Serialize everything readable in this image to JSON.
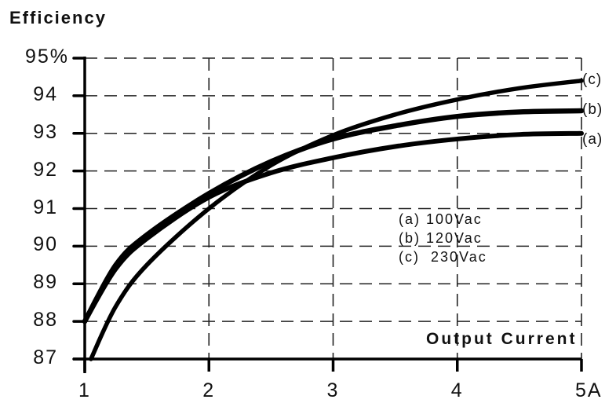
{
  "chart_data": {
    "type": "line",
    "title": "",
    "ylabel": "Efficiency",
    "xlabel": "Output Current",
    "x_unit": "A",
    "y_unit": "%",
    "xlim": [
      1,
      5
    ],
    "ylim": [
      87,
      95
    ],
    "grid": true,
    "grid_style": "dashed",
    "x_ticks": [
      "1",
      "2",
      "3",
      "4",
      "5A"
    ],
    "y_ticks": [
      "87",
      "88",
      "89",
      "90",
      "91",
      "92",
      "93",
      "94",
      "95%"
    ],
    "legend_position": "inside-center-right",
    "legend": [
      "(a) 100Vac",
      "(b) 120Vac",
      "(c)  230Vac"
    ],
    "series": [
      {
        "name": "(a) 100Vac",
        "end_label": "(a)",
        "x": [
          1.0,
          1.25,
          1.5,
          2.0,
          2.5,
          3.0,
          3.5,
          4.0,
          4.5,
          5.0
        ],
        "values": [
          88.0,
          89.4,
          90.2,
          91.3,
          91.95,
          92.35,
          92.65,
          92.85,
          92.97,
          93.0
        ]
      },
      {
        "name": "(b) 120Vac",
        "end_label": "(b)",
        "x": [
          1.0,
          1.25,
          1.5,
          2.0,
          2.5,
          3.0,
          3.5,
          4.0,
          4.5,
          5.0
        ],
        "values": [
          88.0,
          89.5,
          90.3,
          91.4,
          92.25,
          92.85,
          93.2,
          93.45,
          93.57,
          93.6
        ]
      },
      {
        "name": "(c) 230Vac",
        "end_label": "(c)",
        "x": [
          1.05,
          1.25,
          1.5,
          2.0,
          2.5,
          3.0,
          3.5,
          4.0,
          4.5,
          5.0
        ],
        "values": [
          87.0,
          88.4,
          89.5,
          91.0,
          92.15,
          92.95,
          93.5,
          93.9,
          94.2,
          94.4
        ]
      }
    ]
  },
  "axes": {
    "y_title": "Efficiency",
    "x_title": "Output Current"
  },
  "colors": {
    "line": "#000000",
    "grid": "#222222",
    "text": "#111111"
  }
}
